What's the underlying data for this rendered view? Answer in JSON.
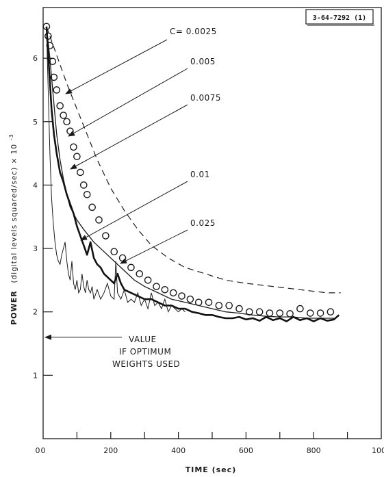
{
  "figure_id": "3-64-7292 (1)",
  "chart_data": {
    "type": "line",
    "xlabel": "TIME (sec)",
    "ylabel_main": "POWER",
    "ylabel_bracket": "(digital levels squared/sec) × 10",
    "ylabel_exponent": "-3",
    "xlim": [
      0,
      1000
    ],
    "ylim": [
      0,
      6.8
    ],
    "x_ticks": [
      "0",
      "200",
      "400",
      "600",
      "800",
      "1000"
    ],
    "y_ticks": [
      "1",
      "2",
      "3",
      "4",
      "5",
      "6"
    ],
    "grid": false,
    "legend": "none",
    "optimum_value": 1.6,
    "optimum_label_lines": [
      "VALUE",
      "IF OPTIMUM",
      "WEIGHTS USED"
    ],
    "series": [
      {
        "name": "C= 0.0025",
        "style": "dashed",
        "points": [
          [
            10,
            6.5
          ],
          [
            30,
            6.2
          ],
          [
            50,
            5.9
          ],
          [
            70,
            5.6
          ],
          [
            100,
            5.2
          ],
          [
            130,
            4.8
          ],
          [
            160,
            4.4
          ],
          [
            200,
            3.95
          ],
          [
            240,
            3.6
          ],
          [
            280,
            3.3
          ],
          [
            320,
            3.05
          ],
          [
            370,
            2.85
          ],
          [
            420,
            2.7
          ],
          [
            480,
            2.6
          ],
          [
            540,
            2.5
          ],
          [
            600,
            2.45
          ],
          [
            680,
            2.4
          ],
          [
            760,
            2.35
          ],
          [
            840,
            2.3
          ],
          [
            880,
            2.3
          ]
        ]
      },
      {
        "name": "0.005",
        "style": "circles",
        "points": [
          [
            10,
            6.5
          ],
          [
            15,
            6.35
          ],
          [
            20,
            6.2
          ],
          [
            28,
            5.95
          ],
          [
            32,
            5.7
          ],
          [
            40,
            5.5
          ],
          [
            50,
            5.25
          ],
          [
            60,
            5.1
          ],
          [
            70,
            5.0
          ],
          [
            80,
            4.85
          ],
          [
            90,
            4.6
          ],
          [
            100,
            4.45
          ],
          [
            110,
            4.2
          ],
          [
            120,
            4.0
          ],
          [
            130,
            3.85
          ],
          [
            145,
            3.65
          ],
          [
            165,
            3.45
          ],
          [
            185,
            3.2
          ],
          [
            210,
            2.95
          ],
          [
            235,
            2.85
          ],
          [
            260,
            2.7
          ],
          [
            285,
            2.6
          ],
          [
            310,
            2.5
          ],
          [
            335,
            2.4
          ],
          [
            360,
            2.35
          ],
          [
            385,
            2.3
          ],
          [
            410,
            2.25
          ],
          [
            435,
            2.2
          ],
          [
            460,
            2.15
          ],
          [
            490,
            2.15
          ],
          [
            520,
            2.1
          ],
          [
            550,
            2.1
          ],
          [
            580,
            2.05
          ],
          [
            610,
            2.0
          ],
          [
            640,
            2.0
          ],
          [
            670,
            1.98
          ],
          [
            700,
            1.98
          ],
          [
            730,
            1.97
          ],
          [
            760,
            2.05
          ],
          [
            790,
            1.98
          ],
          [
            820,
            1.98
          ],
          [
            850,
            2.0
          ]
        ]
      },
      {
        "name": "0.0075",
        "style": "thin",
        "points": [
          [
            10,
            6.5
          ],
          [
            20,
            6.0
          ],
          [
            30,
            5.4
          ],
          [
            40,
            4.8
          ],
          [
            50,
            4.4
          ],
          [
            60,
            4.1
          ],
          [
            70,
            3.85
          ],
          [
            80,
            3.65
          ],
          [
            100,
            3.45
          ],
          [
            120,
            3.3
          ],
          [
            150,
            3.1
          ],
          [
            180,
            2.95
          ],
          [
            210,
            2.8
          ],
          [
            240,
            2.65
          ],
          [
            270,
            2.5
          ],
          [
            300,
            2.4
          ],
          [
            340,
            2.3
          ],
          [
            380,
            2.2
          ],
          [
            420,
            2.15
          ],
          [
            460,
            2.1
          ],
          [
            500,
            2.05
          ],
          [
            540,
            2.0
          ],
          [
            580,
            1.98
          ],
          [
            620,
            1.95
          ],
          [
            660,
            1.93
          ],
          [
            700,
            1.92
          ],
          [
            740,
            1.92
          ],
          [
            780,
            1.9
          ],
          [
            820,
            1.9
          ],
          [
            860,
            1.9
          ]
        ]
      },
      {
        "name": "0.01",
        "style": "thick",
        "points": [
          [
            10,
            6.5
          ],
          [
            18,
            5.8
          ],
          [
            25,
            5.2
          ],
          [
            32,
            4.8
          ],
          [
            40,
            4.5
          ],
          [
            50,
            4.2
          ],
          [
            60,
            4.05
          ],
          [
            70,
            3.85
          ],
          [
            80,
            3.7
          ],
          [
            90,
            3.55
          ],
          [
            100,
            3.35
          ],
          [
            110,
            3.2
          ],
          [
            120,
            3.05
          ],
          [
            130,
            2.9
          ],
          [
            140,
            3.1
          ],
          [
            150,
            2.85
          ],
          [
            160,
            2.75
          ],
          [
            170,
            2.7
          ],
          [
            180,
            2.6
          ],
          [
            190,
            2.55
          ],
          [
            200,
            2.5
          ],
          [
            210,
            2.45
          ],
          [
            220,
            2.6
          ],
          [
            230,
            2.45
          ],
          [
            240,
            2.35
          ],
          [
            260,
            2.3
          ],
          [
            280,
            2.25
          ],
          [
            300,
            2.2
          ],
          [
            320,
            2.2
          ],
          [
            340,
            2.15
          ],
          [
            360,
            2.1
          ],
          [
            380,
            2.1
          ],
          [
            400,
            2.05
          ],
          [
            420,
            2.05
          ],
          [
            440,
            2.0
          ],
          [
            460,
            1.98
          ],
          [
            480,
            1.95
          ],
          [
            500,
            1.95
          ],
          [
            520,
            1.92
          ],
          [
            540,
            1.9
          ],
          [
            560,
            1.9
          ],
          [
            580,
            1.92
          ],
          [
            600,
            1.88
          ],
          [
            620,
            1.9
          ],
          [
            640,
            1.86
          ],
          [
            660,
            1.92
          ],
          [
            680,
            1.87
          ],
          [
            700,
            1.9
          ],
          [
            720,
            1.85
          ],
          [
            740,
            1.92
          ],
          [
            760,
            1.87
          ],
          [
            780,
            1.9
          ],
          [
            800,
            1.85
          ],
          [
            820,
            1.9
          ],
          [
            840,
            1.86
          ],
          [
            860,
            1.88
          ],
          [
            875,
            1.95
          ]
        ]
      },
      {
        "name": "0.025",
        "style": "hairline",
        "points": [
          [
            10,
            6.5
          ],
          [
            15,
            5.5
          ],
          [
            20,
            4.5
          ],
          [
            25,
            3.8
          ],
          [
            30,
            3.4
          ],
          [
            35,
            3.1
          ],
          [
            40,
            2.9
          ],
          [
            45,
            2.8
          ],
          [
            50,
            2.75
          ],
          [
            55,
            2.9
          ],
          [
            60,
            3.0
          ],
          [
            65,
            3.1
          ],
          [
            70,
            2.8
          ],
          [
            75,
            2.6
          ],
          [
            80,
            2.5
          ],
          [
            85,
            2.8
          ],
          [
            90,
            2.45
          ],
          [
            95,
            2.35
          ],
          [
            100,
            2.5
          ],
          [
            105,
            2.3
          ],
          [
            110,
            2.35
          ],
          [
            115,
            2.6
          ],
          [
            120,
            2.4
          ],
          [
            125,
            2.3
          ],
          [
            130,
            2.5
          ],
          [
            135,
            2.35
          ],
          [
            140,
            2.3
          ],
          [
            145,
            2.4
          ],
          [
            150,
            2.2
          ],
          [
            160,
            2.35
          ],
          [
            170,
            2.2
          ],
          [
            180,
            2.3
          ],
          [
            190,
            2.45
          ],
          [
            200,
            2.25
          ],
          [
            210,
            2.2
          ],
          [
            215,
            2.8
          ],
          [
            220,
            2.3
          ],
          [
            230,
            2.2
          ],
          [
            240,
            2.35
          ],
          [
            250,
            2.15
          ],
          [
            260,
            2.2
          ],
          [
            270,
            2.15
          ],
          [
            280,
            2.3
          ],
          [
            290,
            2.1
          ],
          [
            300,
            2.2
          ],
          [
            310,
            2.05
          ],
          [
            320,
            2.3
          ],
          [
            330,
            2.1
          ],
          [
            340,
            2.15
          ],
          [
            350,
            2.05
          ],
          [
            360,
            2.2
          ],
          [
            370,
            2.0
          ],
          [
            380,
            2.1
          ],
          [
            390,
            2.05
          ],
          [
            400,
            2.0
          ],
          [
            410,
            2.05
          ],
          [
            420,
            2.0
          ]
        ]
      }
    ],
    "annotations": [
      {
        "text": "C= 0.0025"
      },
      {
        "text": "0.005"
      },
      {
        "text": "0.0075"
      },
      {
        "text": "0.01"
      },
      {
        "text": "0.025"
      }
    ]
  }
}
